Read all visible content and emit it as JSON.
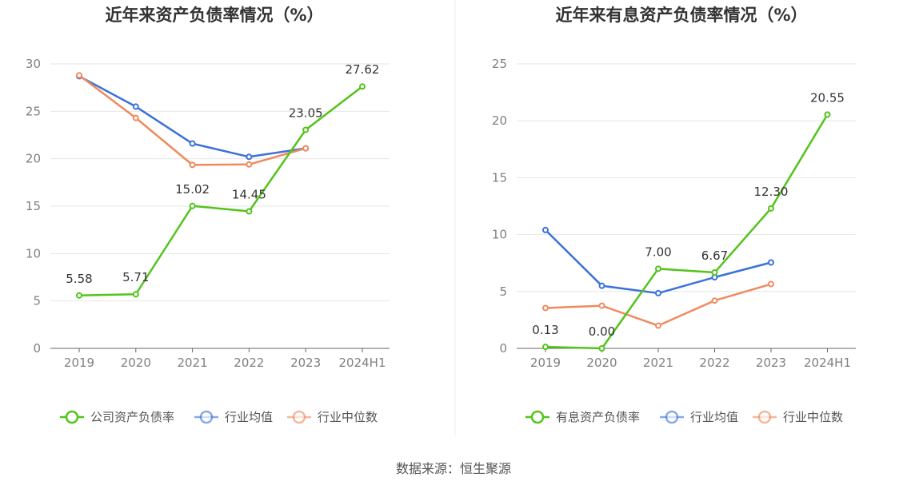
{
  "chart_data": [
    {
      "type": "line",
      "title": "近年来资产负债率情况（%）",
      "categories": [
        "2019",
        "2020",
        "2021",
        "2022",
        "2023",
        "2024H1"
      ],
      "ylim": [
        0,
        30
      ],
      "yticks": [
        0,
        5,
        10,
        15,
        20,
        25,
        30
      ],
      "grid": true,
      "legend_position": "bottom",
      "series": [
        {
          "name": "公司资产负债率",
          "color": "#52c41a",
          "labeled": true,
          "values": [
            5.58,
            5.71,
            15.02,
            14.45,
            23.05,
            27.62
          ],
          "labels": [
            "5.58",
            "5.71",
            "15.02",
            "14.45",
            "23.05",
            "27.62"
          ]
        },
        {
          "name": "行业均值",
          "color": "#3a72d9",
          "labeled": false,
          "values": [
            28.7,
            25.5,
            21.6,
            20.2,
            21.1,
            null
          ]
        },
        {
          "name": "行业中位数",
          "color": "#f08a5d",
          "labeled": false,
          "values": [
            28.8,
            24.3,
            19.35,
            19.4,
            21.1,
            null
          ]
        }
      ]
    },
    {
      "type": "line",
      "title": "近年来有息资产负债率情况（%）",
      "categories": [
        "2019",
        "2020",
        "2021",
        "2022",
        "2023",
        "2024H1"
      ],
      "ylim": [
        0,
        25
      ],
      "yticks": [
        0,
        5,
        10,
        15,
        20,
        25
      ],
      "grid": true,
      "legend_position": "bottom",
      "series": [
        {
          "name": "有息资产负债率",
          "color": "#52c41a",
          "labeled": true,
          "values": [
            0.13,
            0.0,
            7.0,
            6.67,
            12.3,
            20.55
          ],
          "labels": [
            "0.13",
            "0.00",
            "7.00",
            "6.67",
            "12.30",
            "20.55"
          ]
        },
        {
          "name": "行业均值",
          "color": "#3a72d9",
          "labeled": false,
          "values": [
            10.4,
            5.5,
            4.85,
            6.25,
            7.55,
            null
          ]
        },
        {
          "name": "行业中位数",
          "color": "#f08a5d",
          "labeled": false,
          "values": [
            3.55,
            3.75,
            2.0,
            4.2,
            5.65,
            null
          ]
        }
      ]
    }
  ],
  "source_text": "数据来源：恒生聚源"
}
